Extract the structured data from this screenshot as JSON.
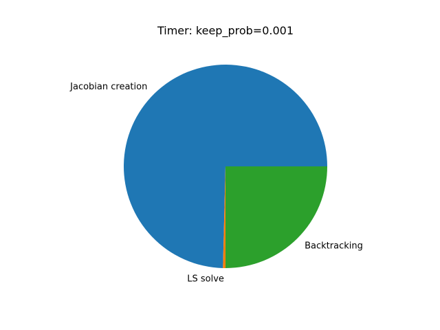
{
  "chart_data": {
    "type": "pie",
    "title": "Timer: keep_prob=0.001",
    "start_angle_deg": 0,
    "direction": "counterclockwise",
    "slices": [
      {
        "label": "Jacobian creation",
        "value": 74.6,
        "color": "#1f77b4"
      },
      {
        "label": "LS solve",
        "value": 0.4,
        "color": "#ff7f0e"
      },
      {
        "label": "Backtracking",
        "value": 25.0,
        "color": "#2ca02c"
      }
    ]
  }
}
